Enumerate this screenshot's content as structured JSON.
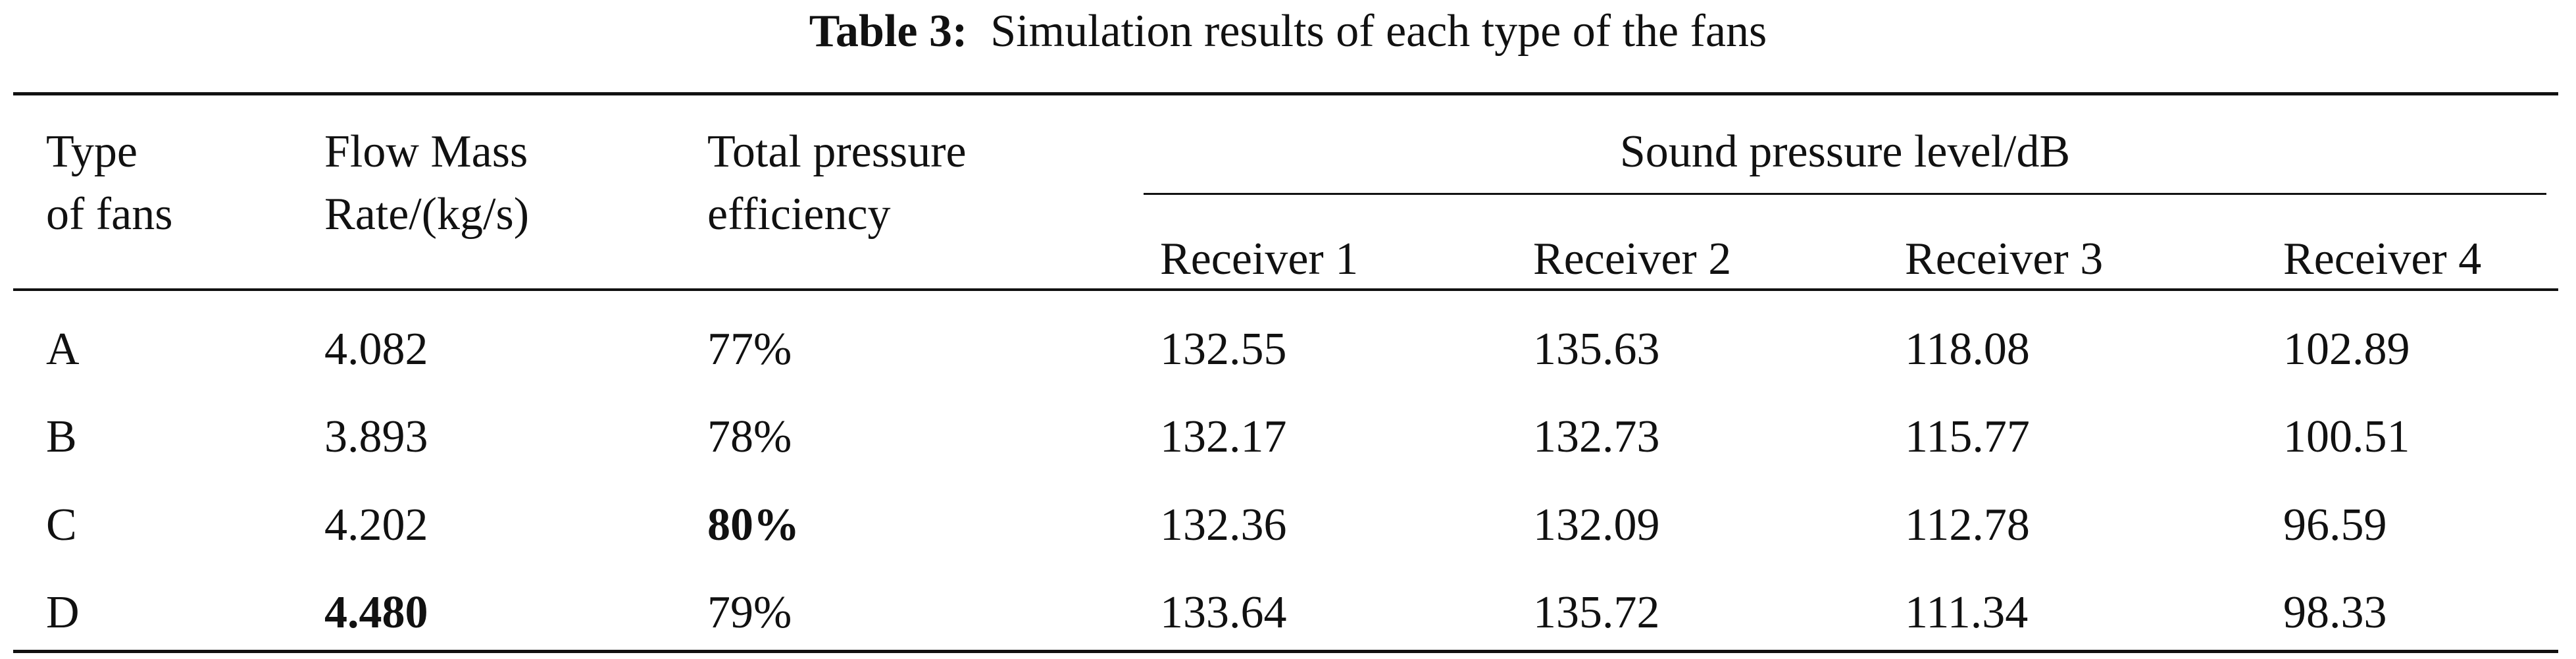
{
  "title": {
    "label": "Table 3:",
    "text": "Simulation results of each type of the fans"
  },
  "table": {
    "columns": [
      [
        "Type",
        "of fans"
      ],
      [
        "Flow Mass",
        "Rate/(kg/s)"
      ],
      [
        "Total pressure",
        "efficiency"
      ]
    ],
    "group": "Sound pressure level/dB",
    "subcolumns": [
      "Receiver 1",
      "Receiver 2",
      "Receiver 3",
      "Receiver 4"
    ],
    "rows": [
      [
        "A",
        "4.082",
        "77%",
        "132.55",
        "135.63",
        "118.08",
        "102.89"
      ],
      [
        "B",
        "3.893",
        "78%",
        "132.17",
        "132.73",
        "115.77",
        "100.51"
      ],
      [
        "C",
        "4.202",
        "80%",
        "132.36",
        "132.09",
        "112.78",
        "96.59"
      ],
      [
        "D",
        "4.480",
        "79%",
        "133.64",
        "135.72",
        "111.34",
        "98.33"
      ]
    ]
  }
}
